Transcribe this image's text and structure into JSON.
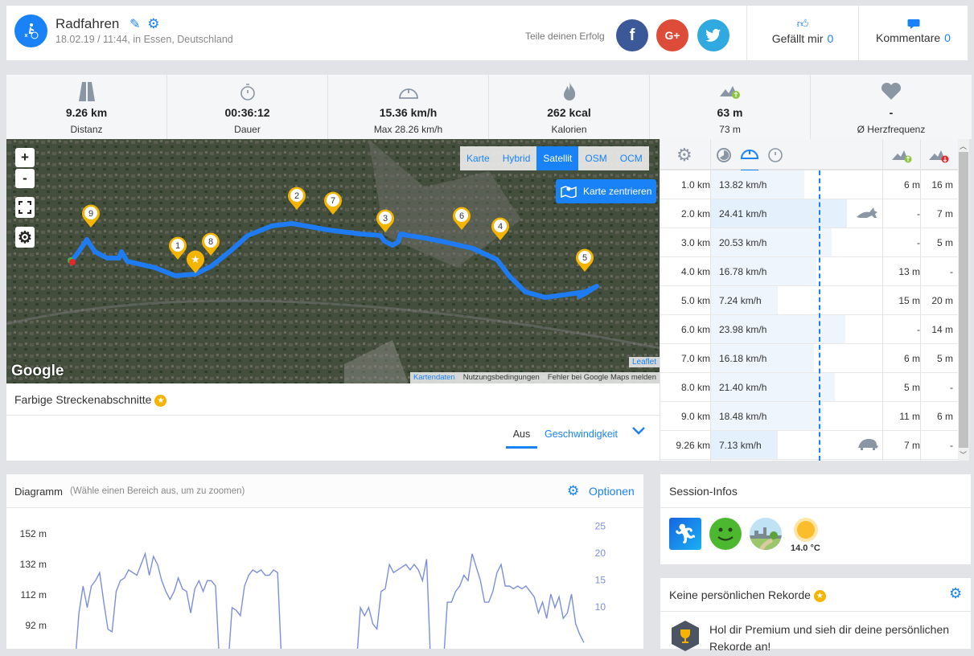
{
  "header": {
    "title": "Radfahren",
    "subtitle": "18.02.19 / 11:44, in Essen, Deutschland",
    "share_label": "Teile deinen Erfolg",
    "social": [
      {
        "name": "facebook",
        "glyph": "f",
        "color": "#3b5998"
      },
      {
        "name": "google-plus",
        "glyph": "G+",
        "color": "#dd4b39"
      },
      {
        "name": "twitter",
        "glyph": "t",
        "color": "#2fa9e0"
      }
    ],
    "like_label": "Gefällt mir",
    "like_count": "0",
    "comments_label": "Kommentare",
    "comments_count": "0"
  },
  "stats": [
    {
      "icon": "road-icon",
      "value": "9.26 km",
      "label": "Distanz"
    },
    {
      "icon": "stopwatch-icon",
      "value": "00:36:12",
      "label": "Dauer"
    },
    {
      "icon": "speedometer-icon",
      "value": "15.36 km/h",
      "label": "Max 28.26 km/h"
    },
    {
      "icon": "flame-icon",
      "value": "262 kcal",
      "label": "Kalorien"
    },
    {
      "icon": "elevation-up-icon",
      "value": "63 m",
      "label": "73 m"
    },
    {
      "icon": "heart-icon",
      "value": "-",
      "label": "Ø Herzfrequenz"
    }
  ],
  "map": {
    "zoom_in": "+",
    "zoom_out": "-",
    "layers": [
      "Karte",
      "Hybrid",
      "Satellit",
      "OSM",
      "OCM"
    ],
    "active_layer": "Satellit",
    "center_label": "Karte zentrieren",
    "markers": [
      "1",
      "2",
      "3",
      "4",
      "5",
      "6",
      "7",
      "8",
      "9"
    ],
    "attribution": [
      "Kartendaten",
      "Nutzungsbedingungen",
      "Fehler bei Google Maps melden"
    ],
    "leaflet": "Leaflet",
    "google": "Google"
  },
  "segments": {
    "title": "Farbige Streckenabschnitte",
    "tabs": [
      "Aus",
      "Geschwindigkeit"
    ],
    "active_tab": "Aus"
  },
  "splits": {
    "average_speed_kmh": 15.36,
    "rows": [
      {
        "km": "1.0 km",
        "speed": "13.82 km/h",
        "v": 13.82,
        "up": "6 m",
        "down": "16 m",
        "badge": ""
      },
      {
        "km": "2.0 km",
        "speed": "24.41 km/h",
        "v": 24.41,
        "up": "-",
        "down": "7 m",
        "badge": "rabbit-icon"
      },
      {
        "km": "3.0 km",
        "speed": "20.53 km/h",
        "v": 20.53,
        "up": "-",
        "down": "5 m",
        "badge": ""
      },
      {
        "km": "4.0 km",
        "speed": "16.78 km/h",
        "v": 16.78,
        "up": "13 m",
        "down": "-",
        "badge": ""
      },
      {
        "km": "5.0 km",
        "speed": "7.24 km/h",
        "v": 7.24,
        "up": "15 m",
        "down": "20 m",
        "badge": ""
      },
      {
        "km": "6.0 km",
        "speed": "23.98 km/h",
        "v": 23.98,
        "up": "-",
        "down": "14 m",
        "badge": ""
      },
      {
        "km": "7.0 km",
        "speed": "16.18 km/h",
        "v": 16.18,
        "up": "6 m",
        "down": "5 m",
        "badge": ""
      },
      {
        "km": "8.0 km",
        "speed": "21.40 km/h",
        "v": 21.4,
        "up": "5 m",
        "down": "-",
        "badge": ""
      },
      {
        "km": "9.0 km",
        "speed": "18.48 km/h",
        "v": 18.48,
        "up": "11 m",
        "down": "6 m",
        "badge": ""
      },
      {
        "km": "9.26 km",
        "speed": "7.13 km/h",
        "v": 7.13,
        "up": "7 m",
        "down": "-",
        "badge": "turtle-icon"
      }
    ]
  },
  "diagram": {
    "title": "Diagramm",
    "hint": "(Wähle einen Bereich aus, um zu zoomen)",
    "options_label": "Optionen"
  },
  "chart_data": {
    "type": "line",
    "left_axis_ticks": [
      "152 m",
      "132 m",
      "112 m",
      "92 m"
    ],
    "right_axis_ticks": [
      "25",
      "20",
      "15",
      "10"
    ],
    "right_ylim_visible": [
      8,
      27
    ],
    "series": [
      {
        "axis": "right",
        "color": "#7b8fdb",
        "values": [
          5,
          15,
          20,
          16,
          20,
          21,
          22.5,
          17,
          12,
          11.5,
          19,
          21,
          21.5,
          23,
          22.5,
          22,
          24,
          26,
          22,
          25.5,
          24,
          21,
          19,
          17.5,
          19,
          21.5,
          19.5,
          19,
          15,
          19.5,
          21,
          19,
          21,
          21,
          20,
          5,
          5,
          5,
          16,
          15.5,
          14.5,
          20,
          22,
          23,
          22.5,
          23,
          22,
          22,
          23,
          22.5,
          5,
          5,
          5,
          5,
          5,
          5,
          5,
          5,
          5,
          5,
          5,
          5,
          5,
          5,
          5,
          5,
          5,
          5,
          5,
          16,
          14.5,
          16,
          13,
          12,
          19,
          19.5,
          24,
          22.5,
          23,
          23.5,
          24,
          23,
          24,
          23,
          21,
          25,
          5,
          5,
          5,
          5,
          17,
          17,
          19,
          20,
          22,
          21,
          26,
          23.5,
          21,
          17,
          17,
          19,
          22.5,
          24,
          20,
          20,
          19.5,
          20,
          19.5,
          20,
          19,
          18,
          15,
          17,
          14,
          18.5,
          16,
          18,
          14,
          15,
          18.5,
          13,
          11,
          9.5
        ]
      }
    ]
  },
  "session": {
    "title": "Session-Infos",
    "temperature": "14.0 °C",
    "icons": [
      "running-app-icon",
      "happy-face-icon",
      "city-park-icon",
      "sun-icon"
    ]
  },
  "records": {
    "title": "Keine persönlichen Rekorde",
    "text": "Hol dir Premium und sieh dir deine persönlichen Rekorde an!"
  },
  "colors": {
    "accent": "#1a82f7",
    "marker": "#f4b400",
    "route": "#1e7bf2"
  }
}
